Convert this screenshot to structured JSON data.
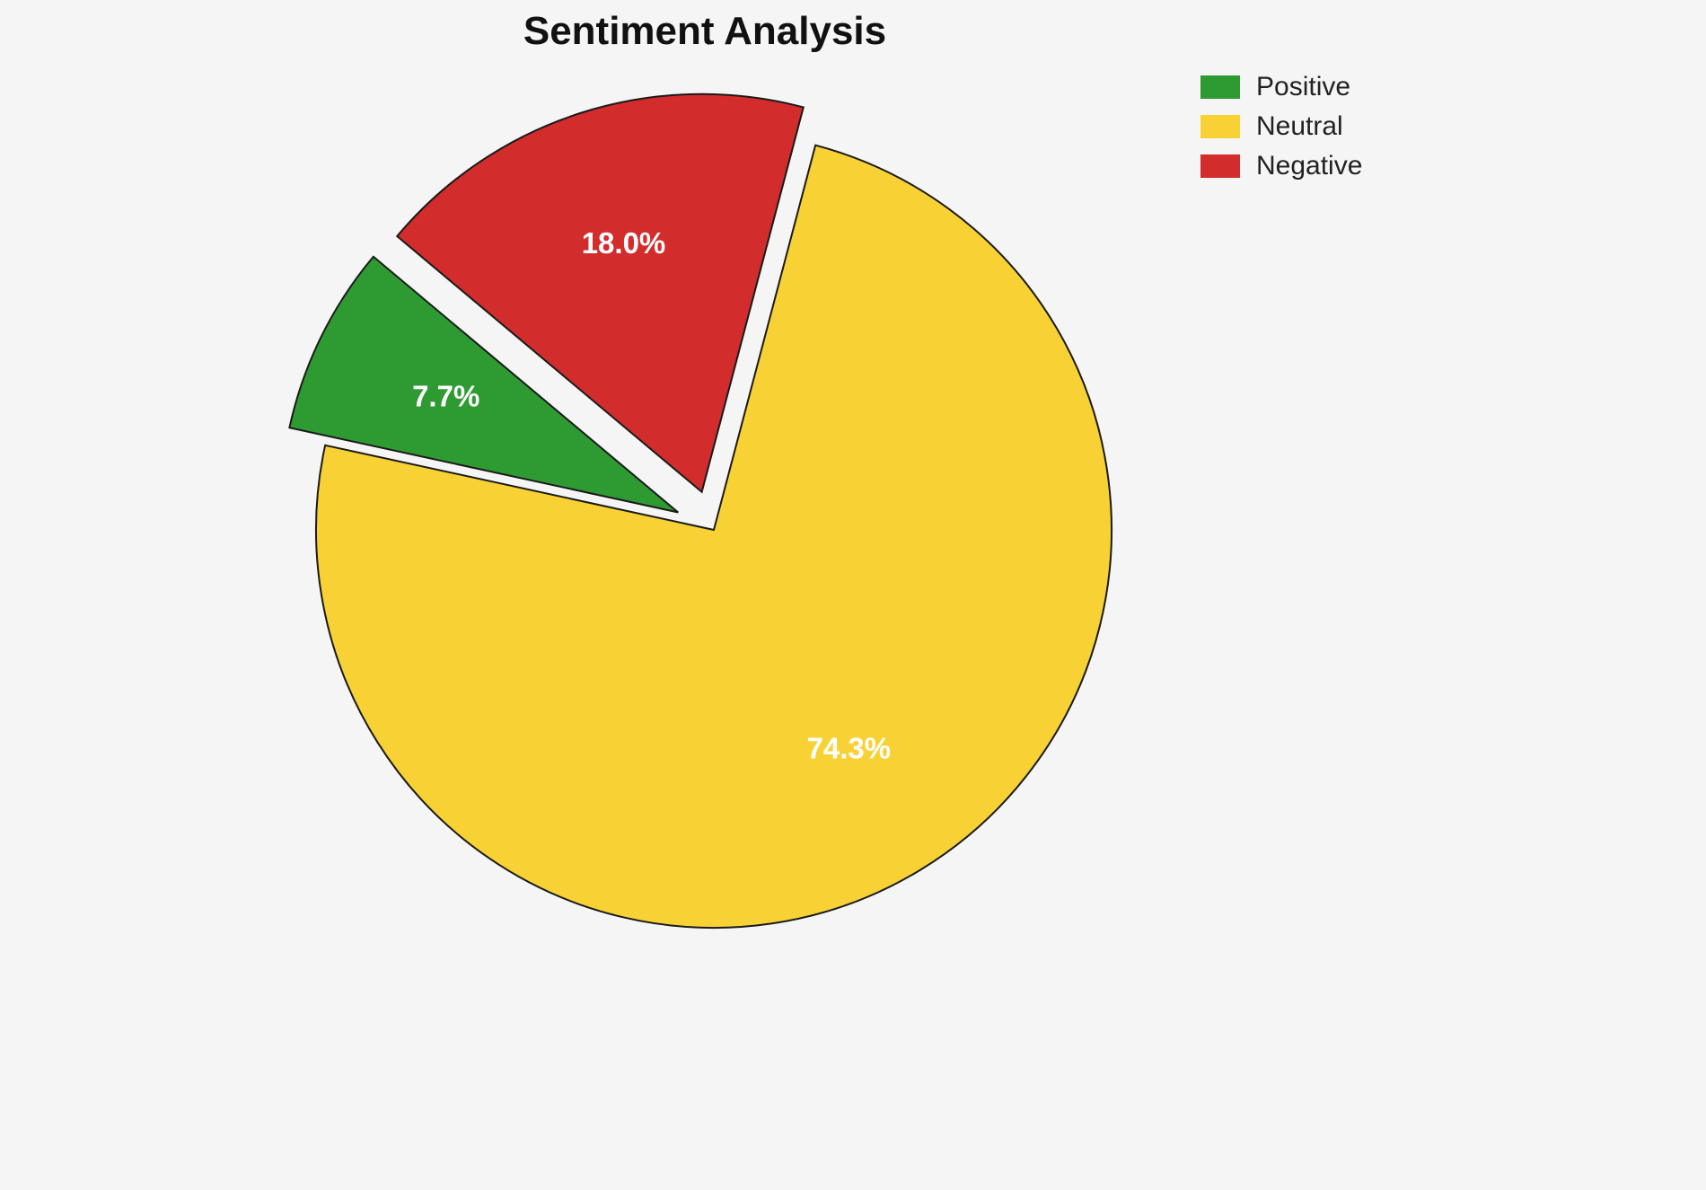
{
  "title": "Sentiment Analysis",
  "background": "#f5f5f6",
  "chart_data": {
    "type": "pie",
    "labels": [
      "Positive",
      "Neutral",
      "Negative"
    ],
    "values": [
      7.7,
      74.3,
      18.0
    ],
    "pct_labels": [
      "7.7%",
      "74.3%",
      "18.0%"
    ],
    "colors": [
      "#2e9b32",
      "#f8d235",
      "#d22c2c"
    ],
    "explode": [
      0.1,
      0,
      0.1
    ],
    "start_angle": 140,
    "counterclock": true,
    "edge_color": "#1a1a1a",
    "label_color": "#ffffff",
    "legend": {
      "position": "upper right",
      "entries": [
        "Positive",
        "Neutral",
        "Negative"
      ]
    }
  }
}
